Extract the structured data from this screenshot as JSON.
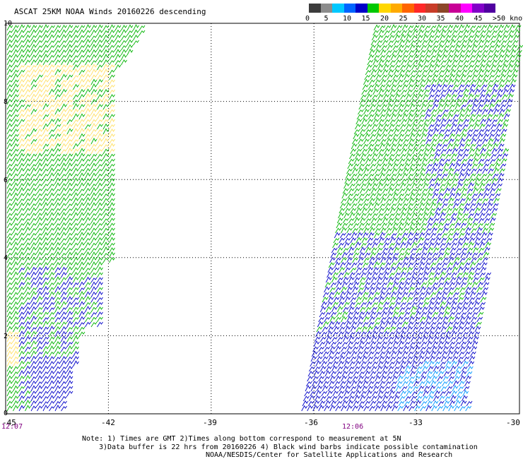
{
  "title": "ASCAT 25KM NOAA Winds 20160226 descending",
  "colorbar": {
    "colors": [
      "#3c3c3c",
      "#8c8c8c",
      "#00c8ff",
      "#0064ff",
      "#0000c8",
      "#00c800",
      "#ffd700",
      "#ffaa00",
      "#ff6400",
      "#ff2828",
      "#c83c28",
      "#8c4628",
      "#c80096",
      "#ff00ff",
      "#8200c8",
      "#5000a0"
    ],
    "labels": [
      "0",
      "5",
      "10",
      "15",
      "20",
      "25",
      "30",
      "35",
      "40",
      "45",
      ">50 knots"
    ]
  },
  "axes": {
    "x_ticks": [
      "-45",
      "-42",
      "-39",
      "-36",
      "-33",
      "-30"
    ],
    "y_ticks": [
      "10",
      "8",
      "6",
      "4",
      "2",
      "0"
    ]
  },
  "times": [
    "12:07",
    "12:06"
  ],
  "notes": {
    "line1": "Note: 1) Times are GMT 2)Times along bottom correspond to measurement at 5N",
    "line2": "3)Data buffer is 22 hrs from 20160226 4) Black wind barbs indicate possible contamination",
    "line3": "NOAA/NESDIS/Center for Satellite Applications and Research"
  },
  "chart_data": {
    "type": "map",
    "title": "ASCAT 25KM NOAA Winds 20160226 descending",
    "xlim": [
      -45,
      -30
    ],
    "ylim": [
      0,
      10
    ],
    "swaths": [
      {
        "lon_range": [
          -45,
          -41.1
        ],
        "lat_range": [
          0,
          10
        ],
        "time": "12:07"
      },
      {
        "lon_range": [
          -36.7,
          -30
        ],
        "lat_range": [
          0,
          10
        ],
        "time": "12:06"
      }
    ],
    "wind_speed_colors_knots": {
      "0-5": "#3c3c3c",
      "10-15": "#0000c8",
      "15-20": "#00c800",
      "20-25": "#ffd700"
    }
  }
}
